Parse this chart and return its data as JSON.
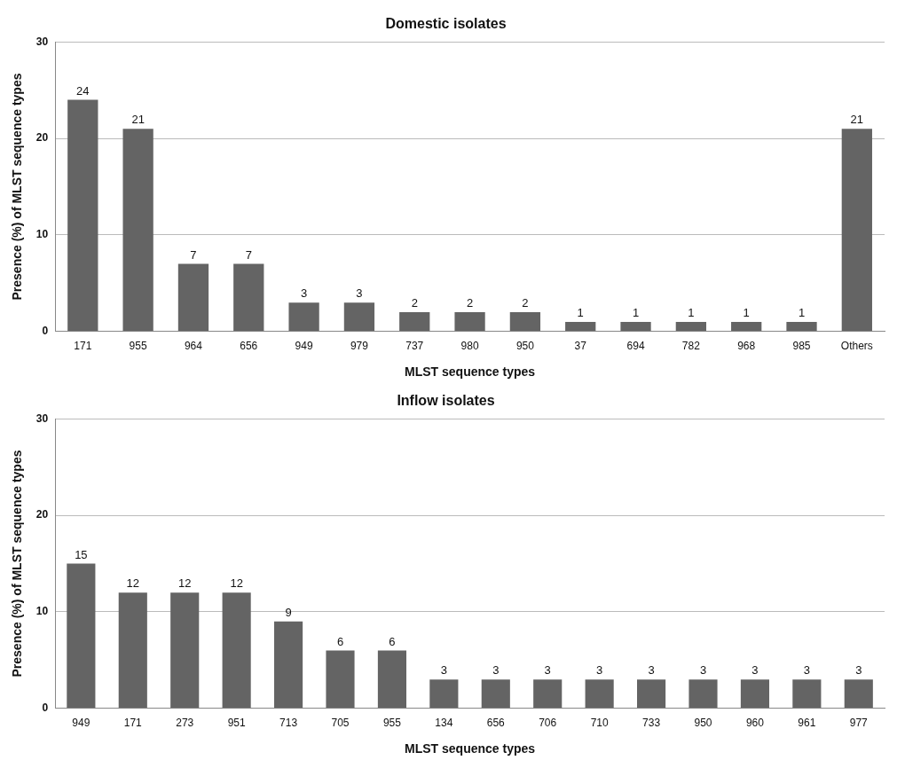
{
  "chart_data": [
    {
      "type": "bar",
      "title": "Domestic isolates",
      "xlabel": "MLST sequence types",
      "ylabel": "Presence (%) of MLST sequence types",
      "categories": [
        "171",
        "955",
        "964",
        "656",
        "949",
        "979",
        "737",
        "980",
        "950",
        "37",
        "694",
        "782",
        "968",
        "985",
        "Others"
      ],
      "values": [
        24,
        21,
        7,
        7,
        3,
        3,
        2,
        2,
        2,
        1,
        1,
        1,
        1,
        1,
        21
      ],
      "color": "#646464",
      "ylim": [
        0,
        30
      ],
      "yticks": [
        0,
        10,
        20,
        30
      ],
      "grid": "y",
      "data_labels": true
    },
    {
      "type": "bar",
      "title": "Inflow isolates",
      "xlabel": "MLST sequence types",
      "ylabel": "Presence (%) of MLST sequence types",
      "categories": [
        "949",
        "171",
        "273",
        "951",
        "713",
        "705",
        "955",
        "134",
        "656",
        "706",
        "710",
        "733",
        "950",
        "960",
        "961",
        "977"
      ],
      "values": [
        15,
        12,
        12,
        12,
        9,
        6,
        6,
        3,
        3,
        3,
        3,
        3,
        3,
        3,
        3,
        3
      ],
      "color": "#646464",
      "ylim": [
        0,
        30
      ],
      "yticks": [
        0,
        10,
        20,
        30
      ],
      "grid": "y",
      "data_labels": true
    }
  ]
}
